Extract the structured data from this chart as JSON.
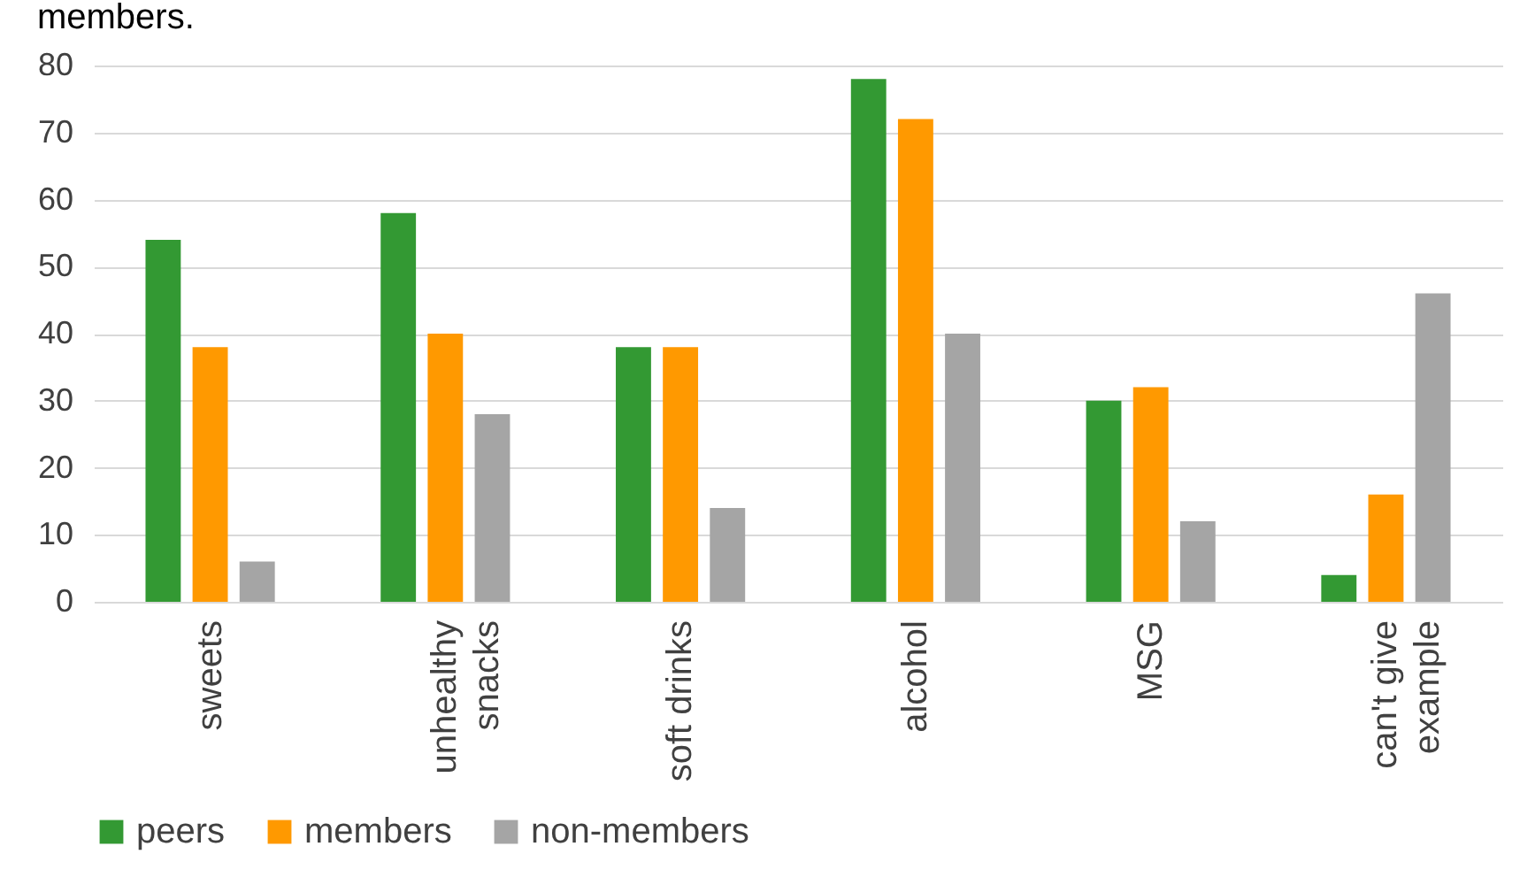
{
  "chart_data": {
    "type": "bar",
    "title": "members.",
    "categories": [
      "sweets",
      "unhealthy snacks",
      "soft drinks",
      "alcohol",
      "MSG",
      "can't give example"
    ],
    "series": [
      {
        "name": "peers",
        "color": "#339933",
        "values": [
          54,
          58,
          38,
          78,
          30,
          4
        ]
      },
      {
        "name": "members",
        "color": "#ff9900",
        "values": [
          38,
          40,
          38,
          72,
          32,
          16
        ]
      },
      {
        "name": "non-members",
        "color": "#a5a5a5",
        "values": [
          6,
          28,
          14,
          40,
          12,
          46
        ]
      }
    ],
    "ylim": [
      0,
      80
    ],
    "yticks": [
      0,
      10,
      20,
      30,
      40,
      50,
      60,
      70,
      80
    ],
    "grid": "y",
    "legend": "bottom"
  }
}
